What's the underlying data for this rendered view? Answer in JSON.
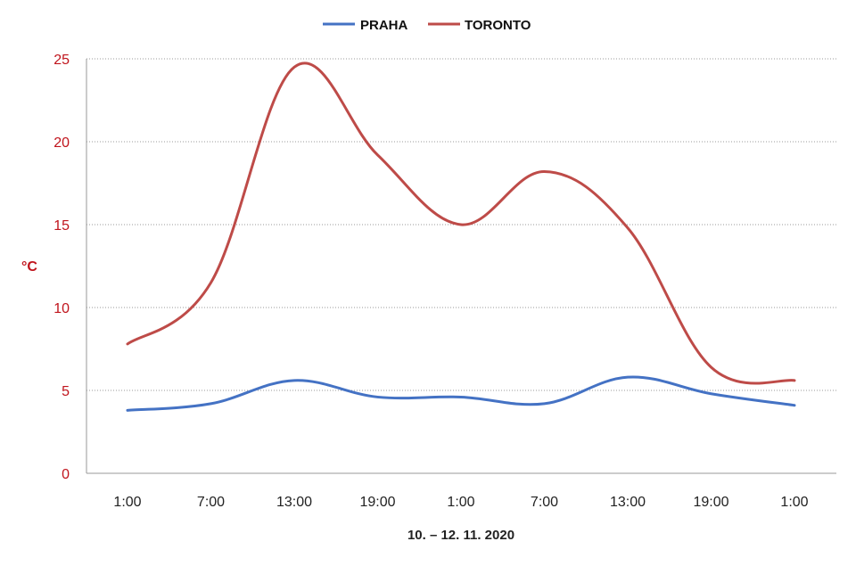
{
  "chart_data": {
    "type": "line",
    "categories": [
      "1:00",
      "7:00",
      "13:00",
      "19:00",
      "1:00",
      "7:00",
      "13:00",
      "19:00",
      "1:00"
    ],
    "series": [
      {
        "name": "PRAHA",
        "color": "#4472c4",
        "values": [
          3.8,
          4.2,
          5.6,
          4.6,
          4.6,
          4.2,
          5.8,
          4.8,
          4.1
        ]
      },
      {
        "name": "TORONTO",
        "color": "#be4b48",
        "values": [
          7.8,
          11.5,
          24.5,
          19.2,
          15.0,
          18.2,
          14.8,
          6.4,
          5.6
        ]
      }
    ],
    "xlabel": "10. – 12. 11. 2020",
    "ylabel": "°C",
    "ylim": [
      0,
      25
    ],
    "yticks": [
      "0",
      "5",
      "10",
      "15",
      "20",
      "25"
    ],
    "grid": true,
    "legend": "top-center"
  }
}
